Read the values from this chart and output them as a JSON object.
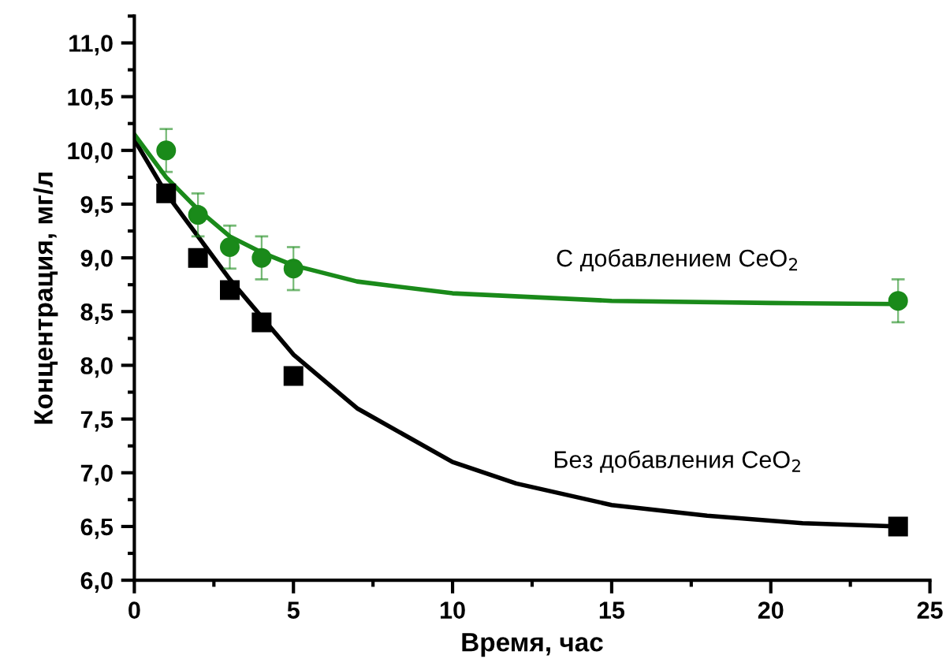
{
  "chart_data": {
    "type": "scatter",
    "xlabel": "Время, час",
    "ylabel": "Концентрация, мг/л",
    "xlim": [
      0,
      25
    ],
    "ylim": [
      6,
      11.25
    ],
    "xticks": [
      0,
      5,
      10,
      15,
      20,
      25
    ],
    "yticks": [
      {
        "value": 6,
        "label": "6,0"
      },
      {
        "value": 6.5,
        "label": "6,5"
      },
      {
        "value": 7,
        "label": "7,0"
      },
      {
        "value": 7.5,
        "label": "7,5"
      },
      {
        "value": 8,
        "label": "8,0"
      },
      {
        "value": 8.5,
        "label": "8,5"
      },
      {
        "value": 9,
        "label": "9,0"
      },
      {
        "value": 9.5,
        "label": "9,5"
      },
      {
        "value": 10,
        "label": "10,0"
      },
      {
        "value": 10.5,
        "label": "10,5"
      },
      {
        "value": 11,
        "label": "11,0"
      }
    ],
    "grid": false,
    "series": [
      {
        "type": "line",
        "color": "#000000",
        "marker": "none",
        "line_style": "solid",
        "x": [
          0,
          1,
          2,
          3,
          4,
          5,
          7,
          10,
          12,
          15,
          18,
          21,
          24
        ],
        "values": [
          10.1,
          9.6,
          9.2,
          8.8,
          8.45,
          8.1,
          7.6,
          7.1,
          6.9,
          6.7,
          6.6,
          6.53,
          6.5
        ]
      },
      {
        "type": "line",
        "color": "#1a8a1a",
        "marker": "none",
        "line_style": "solid",
        "x": [
          0,
          1,
          2,
          3,
          4,
          5,
          7,
          10,
          15,
          20,
          24
        ],
        "values": [
          10.15,
          9.75,
          9.45,
          9.2,
          9.05,
          8.93,
          8.78,
          8.67,
          8.6,
          8.58,
          8.57
        ]
      },
      {
        "color": "#000000",
        "marker": "square",
        "x": [
          1,
          2,
          3,
          4,
          5,
          24
        ],
        "values": [
          9.6,
          9.0,
          8.7,
          8.4,
          7.9,
          6.5
        ],
        "errors": [
          0.05,
          0.05,
          0.05,
          0.05,
          0.05,
          0.05
        ]
      },
      {
        "color": "#1a8a1a",
        "marker": "circle",
        "x": [
          1,
          2,
          3,
          4,
          5,
          24
        ],
        "values": [
          10.0,
          9.4,
          9.1,
          9.0,
          8.9,
          8.6
        ],
        "errors": [
          0.2,
          0.2,
          0.2,
          0.2,
          0.2,
          0.2
        ]
      }
    ],
    "annotations": [
      "С добавлением CeO$_{2}$",
      "Без добавления CeO$_{2}$"
    ]
  }
}
